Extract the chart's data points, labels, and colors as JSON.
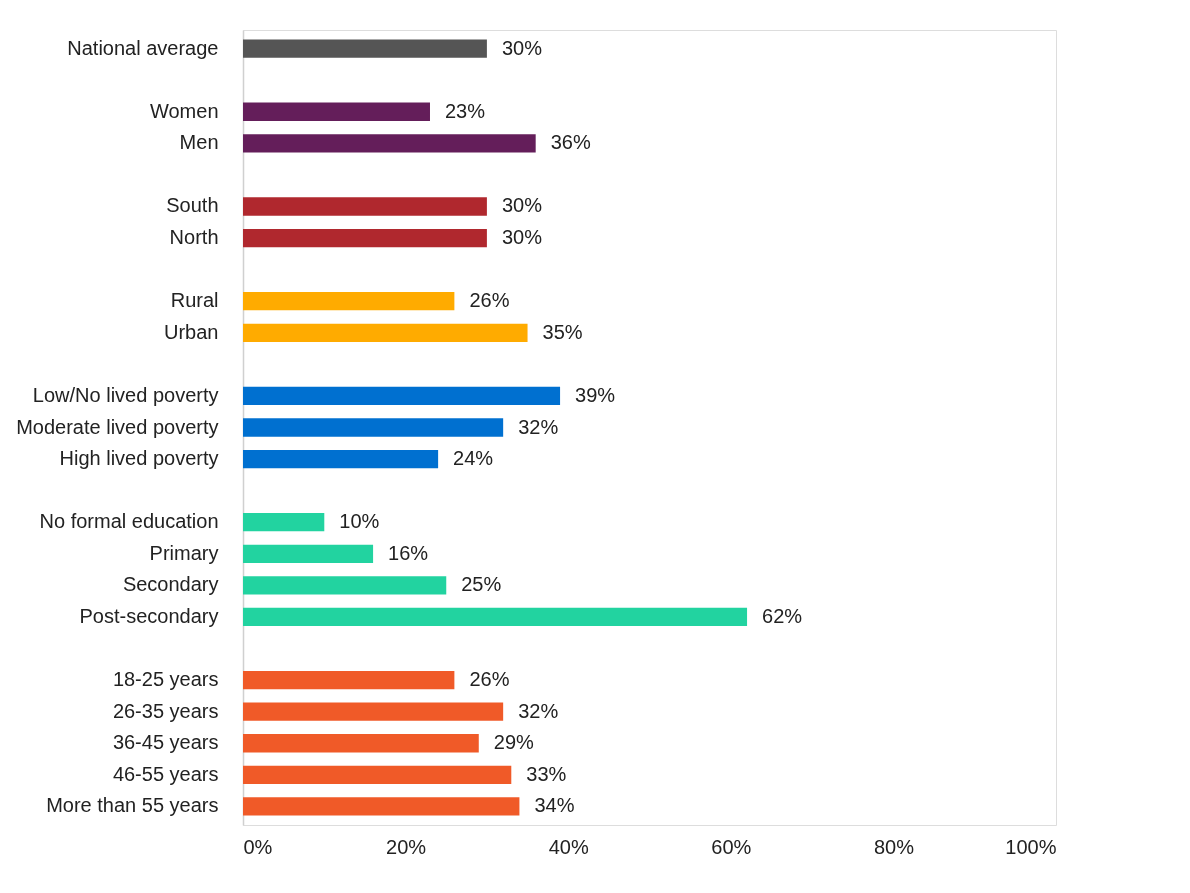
{
  "chart_data": {
    "type": "bar",
    "orientation": "horizontal",
    "categories": [
      "National average",
      null,
      "Women",
      "Men",
      null,
      "South",
      "North",
      null,
      "Rural",
      "Urban",
      null,
      "Low/No lived poverty",
      "Moderate lived poverty",
      "High lived poverty",
      null,
      "No formal education",
      "Primary",
      "Secondary",
      "Post-secondary",
      null,
      "18-25 years",
      "26-35 years",
      "36-45 years",
      "46-55 years",
      "More than 55 years"
    ],
    "values": [
      30,
      null,
      23,
      36,
      null,
      30,
      30,
      null,
      26,
      35,
      null,
      39,
      32,
      24,
      null,
      10,
      16,
      25,
      62,
      null,
      26,
      32,
      29,
      33,
      34
    ],
    "value_labels": [
      "30%",
      null,
      "23%",
      "36%",
      null,
      "30%",
      "30%",
      null,
      "26%",
      "35%",
      null,
      "39%",
      "32%",
      "24%",
      null,
      "10%",
      "16%",
      "25%",
      "62%",
      null,
      "26%",
      "32%",
      "29%",
      "33%",
      "34%"
    ],
    "colors": [
      "#555555",
      null,
      "#641e5a",
      "#641e5a",
      null,
      "#b0282e",
      "#b0282e",
      null,
      "#ffab00",
      "#ffab00",
      null,
      "#0070d0",
      "#0070d0",
      "#0070d0",
      null,
      "#22d3a0",
      "#22d3a0",
      "#22d3a0",
      "#22d3a0",
      null,
      "#f05a28",
      "#f05a28",
      "#f05a28",
      "#f05a28",
      "#f05a28"
    ],
    "xlim": [
      0,
      100
    ],
    "xticks": [
      {
        "value": 0,
        "label": "0%"
      },
      {
        "value": 20,
        "label": "20%"
      },
      {
        "value": 40,
        "label": "40%"
      },
      {
        "value": 60,
        "label": "60%"
      },
      {
        "value": 80,
        "label": "80%"
      },
      {
        "value": 100,
        "label": "100%"
      }
    ],
    "grid": false
  }
}
